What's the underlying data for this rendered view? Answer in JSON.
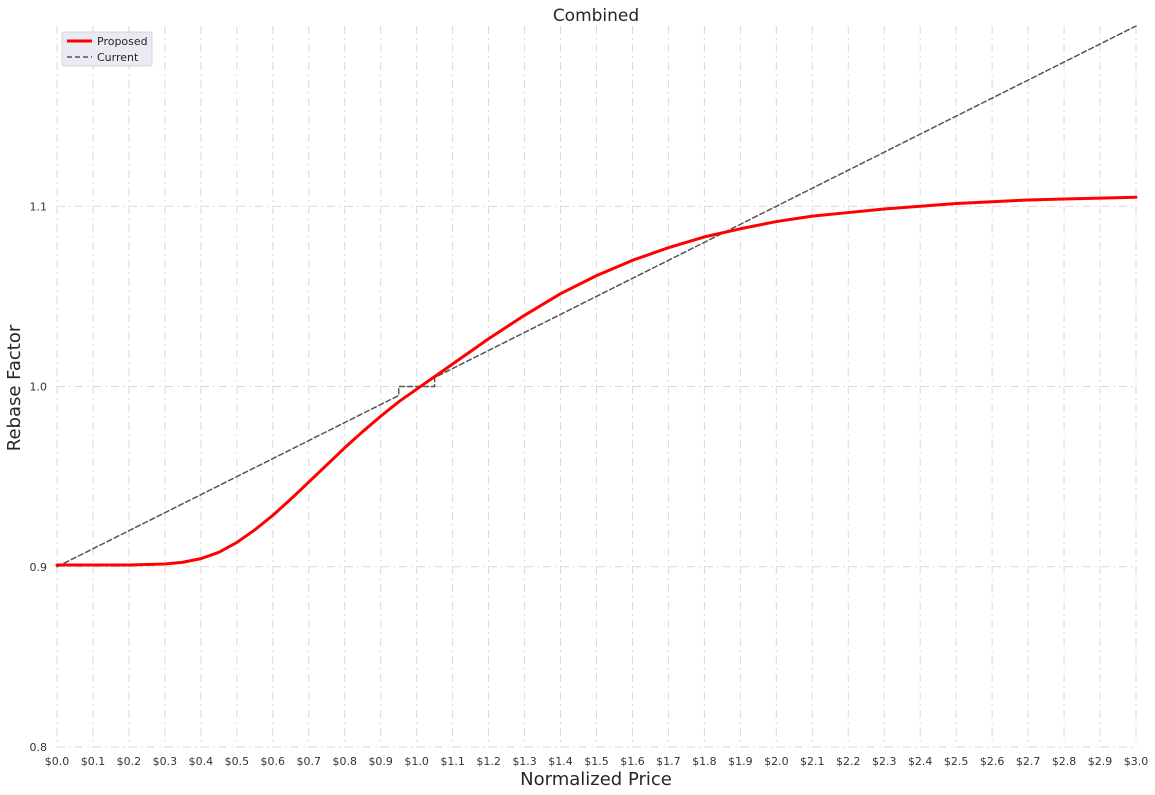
{
  "chart_data": {
    "type": "line",
    "title": "Combined",
    "xlabel": "Normalized Price",
    "ylabel": "Rebase Factor",
    "xlim": [
      0.0,
      3.0
    ],
    "ylim": [
      0.8,
      1.2
    ],
    "grid": true,
    "legend_position": "top-left",
    "x_ticks": [
      0.0,
      0.1,
      0.2,
      0.3,
      0.4,
      0.5,
      0.6,
      0.7,
      0.8,
      0.9,
      1.0,
      1.1,
      1.2,
      1.3,
      1.4,
      1.5,
      1.6,
      1.7,
      1.8,
      1.9,
      2.0,
      2.1,
      2.2,
      2.3,
      2.4,
      2.5,
      2.6,
      2.7,
      2.8,
      2.9,
      3.0
    ],
    "x_tick_labels": [
      "$0.0",
      "$0.1",
      "$0.2",
      "$0.3",
      "$0.4",
      "$0.5",
      "$0.6",
      "$0.7",
      "$0.8",
      "$0.9",
      "$1.0",
      "$1.1",
      "$1.2",
      "$1.3",
      "$1.4",
      "$1.5",
      "$1.6",
      "$1.7",
      "$1.8",
      "$1.9",
      "$2.0",
      "$2.1",
      "$2.2",
      "$2.3",
      "$2.4",
      "$2.5",
      "$2.6",
      "$2.7",
      "$2.8",
      "$2.9",
      "$3.0"
    ],
    "y_ticks": [
      0.8,
      0.9,
      1.0,
      1.1
    ],
    "y_tick_labels": [
      "0.8",
      "0.9",
      "1.0",
      "1.1"
    ],
    "series": [
      {
        "name": "Proposed",
        "color": "#ff0000",
        "style": "solid",
        "x": [
          0.0,
          0.1,
          0.2,
          0.3,
          0.35,
          0.4,
          0.45,
          0.5,
          0.55,
          0.6,
          0.65,
          0.7,
          0.75,
          0.8,
          0.85,
          0.9,
          0.95,
          1.0,
          1.05,
          1.1,
          1.2,
          1.3,
          1.4,
          1.5,
          1.6,
          1.7,
          1.8,
          1.9,
          2.0,
          2.1,
          2.2,
          2.3,
          2.4,
          2.5,
          2.6,
          2.7,
          2.8,
          2.9,
          3.0
        ],
        "y": [
          0.901,
          0.901,
          0.901,
          0.9015,
          0.9025,
          0.9045,
          0.908,
          0.9135,
          0.9205,
          0.9285,
          0.9375,
          0.947,
          0.9565,
          0.966,
          0.975,
          0.9835,
          0.9915,
          0.9985,
          1.0055,
          1.0125,
          1.0265,
          1.0395,
          1.0515,
          1.0615,
          1.07,
          1.077,
          1.083,
          1.0875,
          1.0915,
          1.0945,
          1.0965,
          1.0985,
          1.1,
          1.1015,
          1.1025,
          1.1035,
          1.104,
          1.1045,
          1.105
        ]
      },
      {
        "name": "Current",
        "color": "#555555",
        "style": "dashed",
        "x": [
          0.0,
          0.95,
          0.95,
          1.05,
          1.05,
          3.0
        ],
        "y": [
          0.9,
          0.995,
          1.0,
          1.0,
          1.005,
          1.2
        ]
      }
    ]
  }
}
